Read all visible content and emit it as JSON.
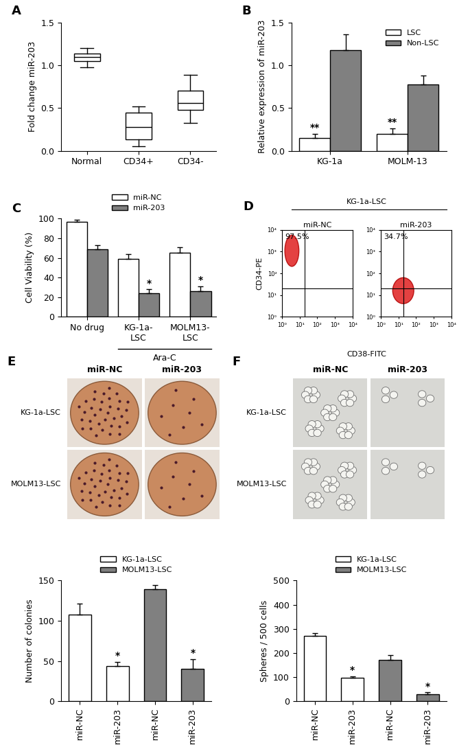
{
  "chart_data": [
    {
      "panel": "A",
      "type": "box",
      "ylabel": "Fold change miR-203",
      "categories": [
        "Normal",
        "CD34+",
        "CD34-"
      ],
      "boxes": [
        {
          "min": 0.98,
          "q1": 1.05,
          "median": 1.1,
          "q3": 1.14,
          "max": 1.2
        },
        {
          "min": 0.05,
          "q1": 0.13,
          "median": 0.28,
          "q3": 0.45,
          "max": 0.52
        },
        {
          "min": 0.33,
          "q1": 0.48,
          "median": 0.56,
          "q3": 0.7,
          "max": 0.89
        }
      ],
      "ylim": [
        0,
        1.5
      ],
      "yticks": [
        {
          "value": 0,
          "label": "0.0"
        },
        {
          "value": 0.5,
          "label": "0.5"
        },
        {
          "value": 1,
          "label": "1.0"
        },
        {
          "value": 1.5,
          "label": "1.5"
        }
      ]
    },
    {
      "panel": "B",
      "type": "bar",
      "ylabel": "Relative expression of miR-203",
      "categories": [
        "KG-1a",
        "MOLM-13"
      ],
      "series": [
        {
          "name": "LSC",
          "color": "#ffffff",
          "values": [
            0.15,
            0.2
          ],
          "errors": [
            0.05,
            0.06
          ],
          "significance": [
            "**",
            "**"
          ]
        },
        {
          "name": "Non-LSC",
          "color": "#808080",
          "values": [
            1.18,
            0.78
          ],
          "errors": [
            0.18,
            0.1
          ]
        }
      ],
      "ylim": [
        0,
        1.5
      ],
      "yticks": [
        {
          "value": 0,
          "label": "0.0"
        },
        {
          "value": 0.5,
          "label": "0.5"
        },
        {
          "value": 1,
          "label": "1.0"
        },
        {
          "value": 1.5,
          "label": "1.5"
        }
      ],
      "legend": "upper right"
    },
    {
      "panel": "C",
      "type": "bar",
      "ylabel": "Cell Viability (%)",
      "categories": [
        "No drug",
        "KG-1a-\nLSC",
        "MOLM13-\nLSC"
      ],
      "group_label": {
        "text": "Ara-C",
        "categories": [
          1,
          2
        ]
      },
      "series": [
        {
          "name": "miR-NC",
          "color": "#ffffff",
          "values": [
            97,
            59,
            65
          ],
          "errors": [
            2,
            5,
            6
          ]
        },
        {
          "name": "miR-203",
          "color": "#808080",
          "values": [
            69,
            24,
            26
          ],
          "errors": [
            4,
            4,
            5
          ],
          "significance": [
            null,
            "*",
            "*"
          ]
        }
      ],
      "ylim": [
        0,
        100
      ],
      "yticks": [
        0,
        20,
        40,
        60,
        80,
        100
      ],
      "legend": "top"
    },
    {
      "type": "bar",
      "ylabel": "Number of colonies",
      "categories": [
        "miR-NC",
        "miR-203",
        "miR-NC",
        "miR-203"
      ],
      "series": [
        {
          "name": "KG-1a-LSC",
          "color": "#ffffff",
          "values": [
            108,
            44,
            null,
            null
          ],
          "errors": [
            13,
            5,
            null,
            null
          ],
          "significance": [
            null,
            "*",
            null,
            null
          ]
        },
        {
          "name": "MOLM13-LSC",
          "color": "#808080",
          "values": [
            null,
            null,
            139,
            40
          ],
          "errors": [
            null,
            null,
            5,
            12
          ],
          "significance": [
            null,
            null,
            null,
            "*"
          ]
        }
      ],
      "ylim": [
        0,
        150
      ],
      "yticks": [
        0,
        50,
        100,
        150
      ],
      "legend": "top"
    },
    {
      "type": "bar",
      "ylabel": "Spheres / 500 cells",
      "categories": [
        "miR-NC",
        "miR-203",
        "miR-NC",
        "miR-203"
      ],
      "series": [
        {
          "name": "KG-1a-LSC",
          "color": "#ffffff",
          "values": [
            270,
            98,
            null,
            null
          ],
          "errors": [
            13,
            5,
            null,
            null
          ],
          "significance": [
            null,
            "*",
            null,
            null
          ]
        },
        {
          "name": "MOLM13-LSC",
          "color": "#808080",
          "values": [
            null,
            null,
            172,
            30
          ],
          "errors": [
            null,
            null,
            20,
            6
          ],
          "significance": [
            null,
            null,
            null,
            "*"
          ]
        }
      ],
      "ylim": [
        0,
        500
      ],
      "yticks": [
        0,
        100,
        200,
        300,
        400,
        500
      ],
      "legend": "top"
    }
  ],
  "flow_cytometry": {
    "panel": "D",
    "title": "KG-1a-LSC",
    "xlabel": "CD38-FITC",
    "ylabel": "CD34-PE",
    "log": true,
    "xlim": [
      1,
      10000
    ],
    "ylim": [
      1,
      10000
    ],
    "xticks": [
      {
        "value": 1,
        "label": "10⁰"
      },
      {
        "value": 10,
        "label": "10¹"
      },
      {
        "value": 100,
        "label": "10²"
      },
      {
        "value": 1000,
        "label": "10³"
      },
      {
        "value": 10000,
        "label": "10⁴"
      }
    ],
    "yticks": [
      {
        "value": 1,
        "label": "10⁰"
      },
      {
        "value": 10,
        "label": "10¹"
      },
      {
        "value": 100,
        "label": "10²"
      },
      {
        "value": 1000,
        "label": "10³"
      },
      {
        "value": 10000,
        "label": "10⁴"
      }
    ],
    "gate": [
      20,
      20
    ],
    "plots": [
      {
        "title": "miR-NC",
        "gate_label": "97.5%"
      },
      {
        "title": "miR-203",
        "gate_label": "34.7%"
      }
    ]
  },
  "images": [
    {
      "panel": "E",
      "columns": [
        "miR-NC",
        "miR-203"
      ],
      "rows": [
        "KG-1a-LSC",
        "MOLM13-LSC"
      ]
    },
    {
      "panel": "F",
      "columns": [
        "miR-NC",
        "miR-203"
      ],
      "rows": [
        "KG-1a-LSC",
        "MOLM13-LSC"
      ]
    }
  ]
}
